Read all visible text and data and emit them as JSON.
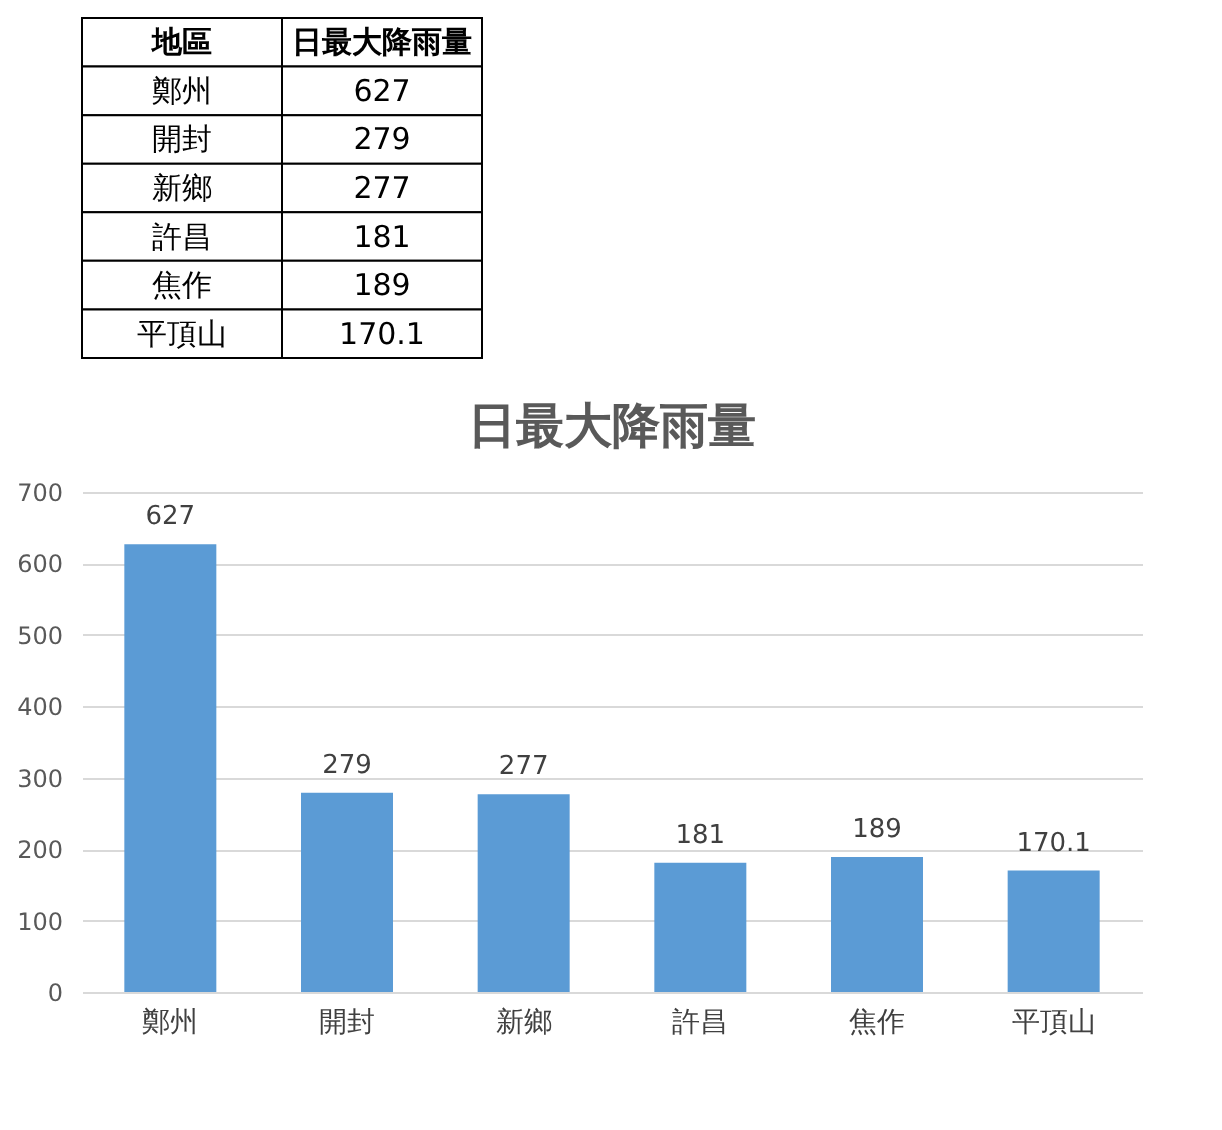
{
  "chart_data": [
    {
      "type": "other",
      "xlabel": "地區",
      "ylabel": "日最大降雨量",
      "categories": [
        "鄭州",
        "開封",
        "新鄉",
        "許昌",
        "焦作",
        "平頂山"
      ],
      "values": [
        627,
        279,
        277,
        181,
        189,
        170.1
      ],
      "data_labels": true
    },
    {
      "type": "bar",
      "title": "日最大降雨量",
      "categories": [
        "鄭州",
        "開封",
        "新鄉",
        "許昌",
        "焦作",
        "平頂山"
      ],
      "values": [
        627,
        279,
        277,
        181,
        189,
        170.1
      ],
      "color": "#5b9bd5",
      "ylim": [
        0,
        700
      ],
      "yticks": [
        0,
        100,
        200,
        300,
        400,
        500,
        600,
        700
      ],
      "grid": "y",
      "data_labels": true,
      "legend": false
    }
  ]
}
